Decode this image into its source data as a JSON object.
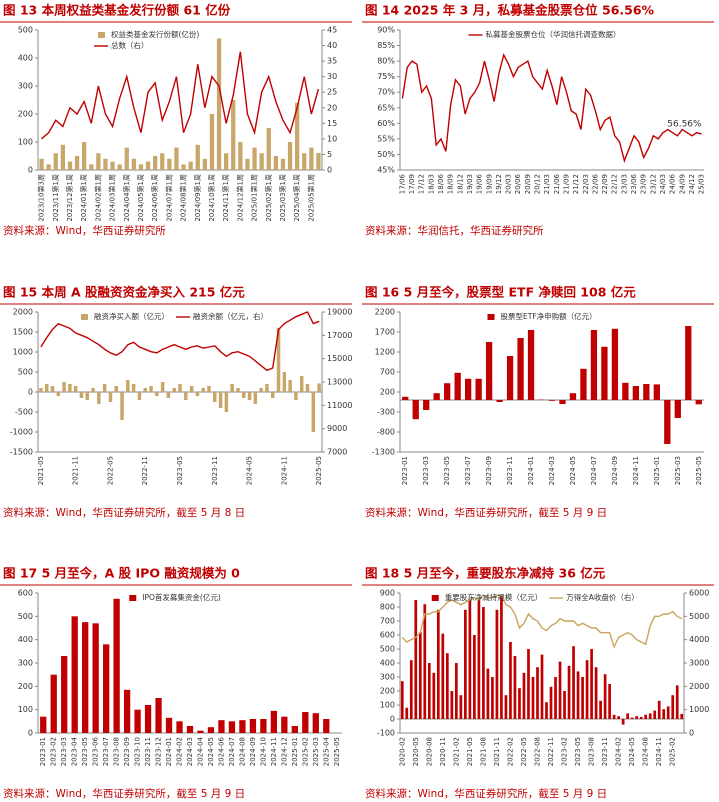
{
  "chart_data": [
    {
      "type": "combo",
      "title": "图 13 本周权益类基金发行份额 61 亿份",
      "source": "资料来源：Wind，华西证券研究所",
      "legend": "top-left",
      "categories": [
        "2023/10第3周",
        null,
        "2023/11第1周",
        null,
        "2023/12第1周",
        null,
        "2024/01第1周",
        null,
        "2024/02第1周",
        null,
        "2024/03第1周",
        null,
        "2024/04第1周",
        null,
        "2024/05第1周",
        null,
        "2024/06第1周",
        null,
        "2024/07第1周",
        null,
        "2024/08第1周",
        null,
        "2024/09第1周",
        null,
        "2024/10第1周",
        null,
        "2024/11第1周",
        null,
        "2024/12第1周",
        null,
        "2025/01第1周",
        null,
        "2025/02第1周",
        null,
        "2025/03第1周",
        null,
        "2025/04第1周",
        null,
        "2025/05第1周",
        null
      ],
      "ylim": [
        0,
        500
      ],
      "yticks": [
        0,
        100,
        200,
        300,
        400,
        500
      ],
      "y2lim": [
        0,
        45
      ],
      "y2ticks": [
        0,
        5,
        10,
        15,
        20,
        25,
        30,
        35,
        40,
        45
      ],
      "series": [
        {
          "name": "权益类基金发行份额(亿份)",
          "type": "bar",
          "color": "#c9a76a",
          "values": [
            40,
            20,
            60,
            90,
            30,
            50,
            100,
            20,
            60,
            40,
            30,
            20,
            80,
            40,
            20,
            30,
            50,
            60,
            40,
            80,
            20,
            30,
            90,
            40,
            200,
            470,
            60,
            250,
            100,
            40,
            80,
            60,
            150,
            50,
            40,
            100,
            240,
            60,
            80,
            61
          ]
        },
        {
          "name": "总数（右）",
          "type": "line",
          "axis": "y2",
          "color": "#c00000",
          "values": [
            10,
            12,
            16,
            14,
            20,
            18,
            22,
            15,
            27,
            18,
            14,
            23,
            30,
            20,
            12,
            25,
            28,
            16,
            22,
            30,
            12,
            18,
            34,
            20,
            30,
            27,
            15,
            24,
            38,
            18,
            12,
            25,
            30,
            22,
            16,
            12,
            20,
            30,
            18,
            26
          ]
        }
      ]
    },
    {
      "type": "line",
      "title": "图 14 2025 年 3 月，私募基金股票仓位 56.56%",
      "source": "资料来源：华润信托，华西证券研究所",
      "legend": "top",
      "annotation": "56.56%",
      "categories": [
        "17/06",
        null,
        "17/09",
        null,
        "17/12",
        null,
        "18/03",
        null,
        "18/06",
        null,
        "18/09",
        null,
        "18/12",
        null,
        "19/03",
        null,
        "19/06",
        null,
        "19/09",
        null,
        "19/12",
        null,
        "20/03",
        null,
        "20/06",
        null,
        "20/09",
        null,
        "20/12",
        null,
        "21/03",
        null,
        "21/06",
        null,
        "21/09",
        null,
        "21/12",
        null,
        "22/03",
        null,
        "22/06",
        null,
        "22/09",
        null,
        "22/12",
        null,
        "23/03",
        null,
        "23/06",
        null,
        "23/09",
        null,
        "23/12",
        null,
        "24/03",
        null,
        "24/06",
        null,
        "24/09",
        null,
        "24/12",
        null,
        "25/03"
      ],
      "ylim": [
        45,
        90
      ],
      "yticks": [
        {
          "value": 45,
          "label": "45%"
        },
        {
          "value": 50,
          "label": "50%"
        },
        {
          "value": 55,
          "label": "55%"
        },
        {
          "value": 60,
          "label": "60%"
        },
        {
          "value": 65,
          "label": "65%"
        },
        {
          "value": 70,
          "label": "70%"
        },
        {
          "value": 75,
          "label": "75%"
        },
        {
          "value": 80,
          "label": "80%"
        },
        {
          "value": 85,
          "label": "85%"
        },
        {
          "value": 90,
          "label": "90%"
        }
      ],
      "series": [
        {
          "name": "私募基金股票仓位（华润信托调查数据）",
          "color": "#c00000",
          "values": [
            68,
            78,
            80,
            79,
            70,
            72,
            68,
            53,
            55,
            51,
            66,
            74,
            72,
            63,
            68,
            70,
            73,
            80,
            74,
            67,
            76,
            82,
            79,
            75,
            78,
            79,
            80,
            75,
            73,
            71,
            77,
            72,
            66,
            75,
            70,
            64,
            63,
            58,
            71,
            69,
            64,
            58,
            61,
            62,
            56,
            54,
            48,
            52,
            56,
            54,
            49,
            52,
            56,
            55,
            57,
            58,
            57,
            56,
            58,
            57,
            56,
            57,
            56.56
          ]
        }
      ]
    },
    {
      "type": "combo",
      "title": "图 15 本周 A 股融资资金净买入 215 亿元",
      "source": "资料来源：Wind，华西证券研究所，截至 5 月 8 日",
      "legend": "top",
      "categories": [
        "2021-05",
        null,
        null,
        null,
        null,
        null,
        "2021-11",
        null,
        null,
        null,
        null,
        null,
        "2022-05",
        null,
        null,
        null,
        null,
        null,
        "2022-11",
        null,
        null,
        null,
        null,
        null,
        "2023-05",
        null,
        null,
        null,
        null,
        null,
        "2023-11",
        null,
        null,
        null,
        null,
        null,
        "2024-05",
        null,
        null,
        null,
        null,
        null,
        "2024-11",
        null,
        null,
        null,
        null,
        null,
        "2025-05"
      ],
      "ylim": [
        -1500,
        2000
      ],
      "yticks": [
        -1500,
        -1000,
        -500,
        0,
        500,
        1000,
        1500,
        2000
      ],
      "y2lim": [
        7000,
        19000
      ],
      "y2ticks": [
        7000,
        9000,
        11000,
        13000,
        15000,
        17000,
        19000
      ],
      "series": [
        {
          "name": "融资净买入额（亿元）",
          "type": "bar",
          "color": "#c8a568",
          "values": [
            100,
            200,
            150,
            -100,
            250,
            200,
            150,
            -150,
            -200,
            100,
            -300,
            200,
            -250,
            150,
            -700,
            300,
            200,
            -200,
            100,
            150,
            -100,
            250,
            -150,
            100,
            200,
            -200,
            150,
            -100,
            100,
            150,
            -250,
            -400,
            -500,
            200,
            100,
            -150,
            -200,
            -300,
            100,
            200,
            -150,
            1600,
            500,
            300,
            -200,
            400,
            200,
            -1000,
            215
          ]
        },
        {
          "name": "融资余额（亿元，右）",
          "type": "line",
          "axis": "y2",
          "color": "#c00000",
          "values": [
            16000,
            16800,
            17500,
            18000,
            17800,
            17600,
            17200,
            17000,
            16800,
            16500,
            16200,
            15800,
            15500,
            15300,
            15600,
            16200,
            16400,
            16000,
            15800,
            15600,
            15500,
            15800,
            16000,
            16200,
            16000,
            15800,
            16000,
            16100,
            15900,
            16000,
            16100,
            15600,
            15200,
            15500,
            15600,
            15400,
            15200,
            14800,
            14400,
            14000,
            14200,
            17500,
            18000,
            18300,
            18600,
            18800,
            19000,
            18000,
            18200
          ]
        }
      ]
    },
    {
      "type": "bar",
      "title": "图 16 5 月至今，股票型 ETF 净赎回 108 亿元",
      "source": "资料来源：Wind，华西证券研究所，截至 5 月 9 日",
      "legend": "top",
      "categories": [
        "2023-01",
        null,
        "2023-03",
        null,
        "2023-05",
        null,
        "2023-07",
        null,
        "2023-09",
        null,
        "2023-11",
        null,
        "2024-01",
        null,
        "2024-03",
        null,
        "2024-05",
        null,
        "2024-07",
        null,
        "2024-09",
        null,
        "2024-11",
        null,
        "2025-01",
        null,
        "2025-03",
        null,
        "2025-05"
      ],
      "ylim": [
        -1300,
        2200
      ],
      "yticks": [
        -1300,
        -800,
        -300,
        200,
        700,
        1200,
        1700,
        2200
      ],
      "series": [
        {
          "name": "股票型ETF净申购额（亿元）",
          "color": "#c00000",
          "values": [
            80,
            -480,
            -250,
            170,
            420,
            680,
            530,
            530,
            1450,
            -50,
            1100,
            1550,
            1750,
            10,
            -20,
            -100,
            170,
            780,
            1750,
            1330,
            1780,
            430,
            350,
            400,
            390,
            -1100,
            -450,
            1850,
            -108
          ]
        }
      ]
    },
    {
      "type": "bar",
      "title": "图 17 5 月至今，A 股 IPO 融资规模为 0",
      "source": "资料来源：Wind，华西证券研究所，截至 5 月 9 日",
      "legend": "top",
      "categories": [
        "2023-01",
        "2023-02",
        "2023-03",
        "2023-04",
        "2023-05",
        "2023-06",
        "2023-07",
        "2023-08",
        "2023-09",
        "2023-10",
        "2023-11",
        "2023-12",
        "2024-01",
        "2024-02",
        "2024-03",
        "2024-04",
        "2024-05",
        "2024-06",
        "2024-07",
        "2024-08",
        "2024-09",
        "2024-10",
        "2024-11",
        "2024-12",
        "2025-01",
        "2025-02",
        "2025-03",
        "2025-04",
        "2025-05"
      ],
      "ylim": [
        0,
        600
      ],
      "yticks": [
        0,
        100,
        200,
        300,
        400,
        500,
        600
      ],
      "series": [
        {
          "name": "IPO首发募集资金(亿元)",
          "color": "#c00000",
          "values": [
            70,
            250,
            330,
            500,
            475,
            470,
            380,
            575,
            185,
            100,
            120,
            150,
            65,
            50,
            30,
            10,
            25,
            55,
            50,
            55,
            60,
            60,
            95,
            70,
            30,
            90,
            85,
            60,
            0
          ]
        }
      ]
    },
    {
      "type": "combo",
      "title": "图 18 5 月至今，重要股东净减持 36 亿元",
      "source": "资料来源：Wind，华西证券研究所，截至 5 月 9 日",
      "legend": "top",
      "categories": [
        "2020-02",
        null,
        null,
        "2020-05",
        null,
        null,
        "2020-08",
        null,
        null,
        "2020-11",
        null,
        null,
        "2021-02",
        null,
        null,
        "2021-05",
        null,
        null,
        "2021-08",
        null,
        null,
        "2021-11",
        null,
        null,
        "2022-02",
        null,
        null,
        "2022-05",
        null,
        null,
        "2022-08",
        null,
        null,
        "2022-11",
        null,
        null,
        "2023-02",
        null,
        null,
        "2023-05",
        null,
        null,
        "2023-08",
        null,
        null,
        "2023-11",
        null,
        null,
        "2024-02",
        null,
        null,
        "2024-05",
        null,
        null,
        "2024-08",
        null,
        null,
        "2024-11",
        null,
        null,
        "2025-02",
        null,
        null
      ],
      "ylim": [
        -100,
        900
      ],
      "yticks": [
        -100,
        0,
        100,
        200,
        300,
        400,
        500,
        600,
        700,
        800,
        900
      ],
      "y2lim": [
        0,
        6000
      ],
      "y2ticks": [
        0,
        1000,
        2000,
        3000,
        4000,
        5000,
        6000
      ],
      "series": [
        {
          "name": "重要股东净减持规模（亿元）",
          "type": "bar",
          "color": "#c00000",
          "values": [
            270,
            80,
            420,
            850,
            620,
            820,
            400,
            330,
            780,
            610,
            470,
            200,
            400,
            170,
            780,
            860,
            600,
            860,
            800,
            360,
            300,
            780,
            880,
            170,
            550,
            450,
            220,
            330,
            500,
            300,
            370,
            460,
            120,
            230,
            300,
            410,
            200,
            380,
            520,
            340,
            300,
            420,
            500,
            370,
            130,
            320,
            250,
            30,
            20,
            -40,
            40,
            10,
            20,
            15,
            30,
            40,
            60,
            130,
            70,
            90,
            170,
            240,
            36
          ]
        },
        {
          "name": "万得全A收盘价（右）",
          "type": "line",
          "axis": "y2",
          "color": "#c9a45c",
          "values": [
            4100,
            3900,
            4000,
            4100,
            4300,
            5100,
            5100,
            5200,
            5200,
            5400,
            5600,
            5700,
            5600,
            5500,
            5600,
            5700,
            5800,
            5700,
            5900,
            5800,
            5800,
            5900,
            5900,
            5500,
            5400,
            5100,
            4500,
            4700,
            5100,
            4900,
            4800,
            4500,
            4400,
            4600,
            4700,
            4900,
            4800,
            4800,
            4800,
            4600,
            4700,
            4600,
            4500,
            4500,
            4300,
            4300,
            4300,
            3700,
            4100,
            4200,
            4300,
            4200,
            4000,
            3900,
            3800,
            4600,
            5000,
            5000,
            5100,
            5100,
            5200,
            5000,
            4900
          ]
        }
      ]
    }
  ]
}
